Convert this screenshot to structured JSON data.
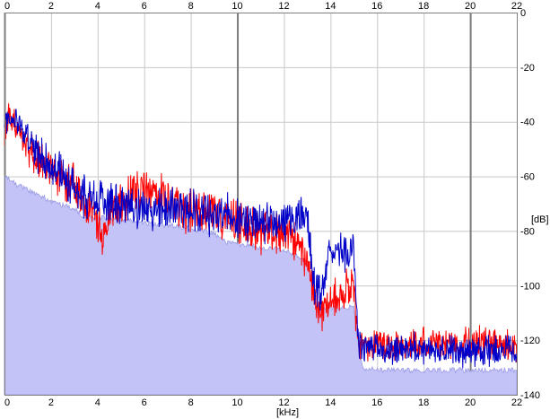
{
  "chart_data": {
    "type": "line",
    "title": "",
    "xlabel": "[kHz]",
    "ylabel": "[dB]",
    "xlim": [
      0,
      22
    ],
    "ylim": [
      -140,
      0
    ],
    "x_ticks": [
      "0",
      "2",
      "4",
      "6",
      "8",
      "10",
      "12",
      "14",
      "16",
      "18",
      "20",
      "22"
    ],
    "y_ticks": [
      "0",
      "-20",
      "-40",
      "-60",
      "-80",
      "-100",
      "-120",
      "-140"
    ],
    "grid": true,
    "legend": "none",
    "colors": {
      "fill": "#c3c3f7",
      "fill_edge": "#9a9ae6",
      "red_series": "#ff0000",
      "blue_series": "#0000c8",
      "grid_minor": "#c8c8c8",
      "grid_major": "#7a7a7a",
      "frame": "#808080"
    },
    "series": [
      {
        "type": "area",
        "x": [
          0,
          0.3,
          1,
          2,
          3,
          3.5,
          4,
          5,
          6,
          7,
          8,
          9,
          9.5,
          10,
          11,
          12,
          12.5,
          13,
          13.2,
          13.5,
          14,
          14.5,
          15,
          15.2,
          15.4,
          16,
          18,
          20,
          22
        ],
        "values": [
          -60,
          -62,
          -65,
          -69,
          -72,
          -75,
          -75,
          -76,
          -77,
          -78,
          -79,
          -81,
          -84,
          -85,
          -86,
          -87,
          -89,
          -92,
          -97,
          -108,
          -108,
          -108,
          -108,
          -122,
          -130,
          -131,
          -131,
          -131,
          -131
        ]
      },
      {
        "type": "line",
        "x": [
          0,
          0.2,
          0.5,
          1,
          1.5,
          2,
          2.5,
          3,
          3.5,
          4,
          4.2,
          4.5,
          5,
          5.5,
          6,
          6.5,
          7,
          7.5,
          8,
          8.5,
          9,
          9.5,
          10,
          10.5,
          11,
          11.5,
          12,
          12.5,
          13,
          13.3,
          13.6,
          14,
          14.5,
          15,
          15.2,
          15.6,
          16,
          17,
          18,
          19,
          20,
          21,
          22
        ],
        "values": [
          -45,
          -38,
          -42,
          -48,
          -53,
          -57,
          -61,
          -64,
          -70,
          -75,
          -85,
          -72,
          -70,
          -66,
          -66,
          -65,
          -67,
          -72,
          -73,
          -72,
          -74,
          -76,
          -76,
          -79,
          -81,
          -80,
          -82,
          -83,
          -91,
          -103,
          -110,
          -103,
          -102,
          -102,
          -120,
          -123,
          -121,
          -123,
          -121,
          -122,
          -121,
          -121,
          -122
        ]
      },
      {
        "type": "line",
        "x": [
          0,
          0.2,
          0.5,
          1,
          1.5,
          2,
          2.5,
          3,
          3.5,
          4,
          4.5,
          5,
          5.5,
          6,
          6.5,
          7,
          7.5,
          8,
          8.5,
          9,
          9.5,
          10,
          10.5,
          11,
          11.5,
          12,
          12.5,
          13,
          13.3,
          13.6,
          13.9,
          14.2,
          14.5,
          15,
          15.2,
          15.6,
          16,
          17,
          18,
          19,
          20,
          21,
          22
        ],
        "values": [
          -42,
          -37,
          -40,
          -47,
          -52,
          -56,
          -60,
          -63,
          -68,
          -69,
          -70,
          -70,
          -71,
          -72,
          -72,
          -72,
          -71,
          -72,
          -73,
          -74,
          -74,
          -75,
          -76,
          -77,
          -77,
          -76,
          -76,
          -75,
          -98,
          -104,
          -90,
          -88,
          -88,
          -87,
          -122,
          -124,
          -123,
          -124,
          -123,
          -124,
          -124,
          -124,
          -124
        ]
      }
    ]
  }
}
